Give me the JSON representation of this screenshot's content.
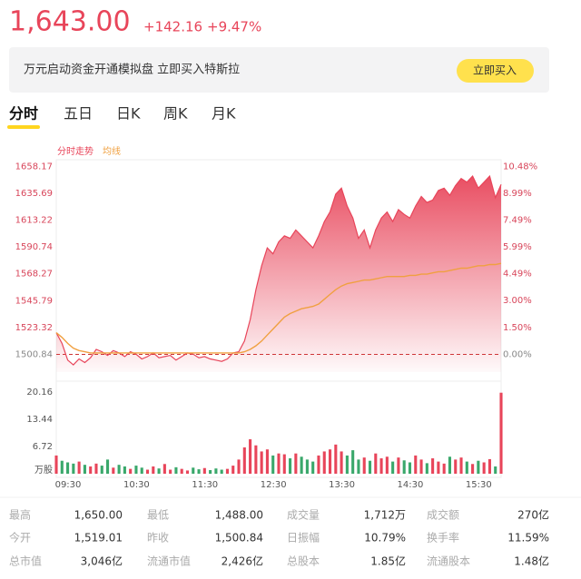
{
  "header": {
    "price": "1,643.00",
    "change": "+142.16",
    "change_pct": "+9.47%"
  },
  "banner": {
    "text": "万元启动资金开通模拟盘  立即买入特斯拉",
    "button": "立即买入"
  },
  "tabs": [
    "分时",
    "五日",
    "日K",
    "周K",
    "月K"
  ],
  "chart_data": [
    {
      "type": "line",
      "area": true,
      "x": [
        0,
        5,
        10,
        15,
        20,
        25,
        30,
        35,
        40,
        45,
        50,
        55,
        60,
        65,
        70,
        75,
        80,
        85,
        90,
        95,
        100,
        105,
        110,
        115,
        120,
        125,
        130,
        135,
        140,
        145,
        150,
        155,
        160,
        165,
        170,
        175,
        180,
        185,
        190,
        195,
        200,
        205,
        210,
        215,
        220,
        225,
        230,
        235,
        240,
        245,
        250,
        255,
        260,
        265,
        270,
        275,
        280,
        285,
        290,
        295,
        300,
        305,
        310,
        315,
        320,
        325,
        330,
        335,
        340,
        345,
        350,
        355,
        360,
        365,
        370,
        375,
        380,
        385,
        390
      ],
      "xlim": [
        0,
        390
      ],
      "xticks": [
        {
          "value": 0,
          "label": "09:30"
        },
        {
          "value": 60,
          "label": "10:30"
        },
        {
          "value": 120,
          "label": "11:30"
        },
        {
          "value": 180,
          "label": "12:30"
        },
        {
          "value": 240,
          "label": "13:30"
        },
        {
          "value": 300,
          "label": "14:30"
        },
        {
          "value": 360,
          "label": "15:30"
        }
      ],
      "ylim": [
        1486,
        1663
      ],
      "yticks": [
        1500.84,
        1523.32,
        1545.79,
        1568.27,
        1590.74,
        1613.22,
        1635.69,
        1658.17
      ],
      "y2lim": [
        -0.99,
        10.8
      ],
      "y2ticks": [
        {
          "value": 0,
          "label": "0.00%"
        },
        {
          "value": 1.5,
          "label": "1.50%"
        },
        {
          "value": 3,
          "label": "3.00%"
        },
        {
          "value": 4.49,
          "label": "4.49%"
        },
        {
          "value": 5.99,
          "label": "5.99%"
        },
        {
          "value": 7.49,
          "label": "7.49%"
        },
        {
          "value": 8.99,
          "label": "8.99%"
        },
        {
          "value": 10.48,
          "label": "10.48%"
        }
      ],
      "baseline": 1500.84,
      "series": [
        {
          "name": "分时走势",
          "color": "#e8455a",
          "values": [
            1519,
            1510,
            1496,
            1492,
            1497,
            1494,
            1498,
            1505,
            1503,
            1500,
            1504,
            1502,
            1499,
            1503,
            1501,
            1497,
            1499,
            1502,
            1498,
            1499,
            1500,
            1496,
            1499,
            1502,
            1501,
            1498,
            1499,
            1497,
            1496,
            1495,
            1497,
            1502,
            1503,
            1512,
            1530,
            1555,
            1575,
            1590,
            1585,
            1595,
            1600,
            1598,
            1605,
            1600,
            1595,
            1590,
            1600,
            1612,
            1620,
            1635,
            1640,
            1625,
            1615,
            1598,
            1605,
            1590,
            1605,
            1615,
            1620,
            1612,
            1622,
            1618,
            1615,
            1625,
            1633,
            1628,
            1630,
            1638,
            1640,
            1634,
            1642,
            1648,
            1645,
            1650,
            1640,
            1645,
            1650,
            1632,
            1643
          ]
        },
        {
          "name": "均线",
          "color": "#f0a040",
          "values": [
            1519,
            1515,
            1510,
            1506,
            1504,
            1503,
            1502,
            1502,
            1502,
            1502,
            1502,
            1502,
            1502,
            1502,
            1502,
            1502,
            1502,
            1502,
            1502,
            1502,
            1502,
            1502,
            1502,
            1502,
            1502,
            1502,
            1502,
            1502,
            1502,
            1502,
            1502,
            1502,
            1502,
            1503,
            1505,
            1508,
            1512,
            1517,
            1522,
            1527,
            1532,
            1535,
            1537,
            1539,
            1540,
            1541,
            1543,
            1547,
            1551,
            1555,
            1558,
            1560,
            1561,
            1562,
            1563,
            1563,
            1564,
            1565,
            1566,
            1566,
            1566,
            1566,
            1567,
            1567,
            1568,
            1568,
            1569,
            1570,
            1570,
            1571,
            1572,
            1573,
            1573,
            1574,
            1575,
            1575,
            1576,
            1576,
            1577
          ]
        }
      ]
    },
    {
      "type": "bar",
      "up_color": "#e8455a",
      "down_color": "#3aa86b",
      "x": [
        0,
        5,
        10,
        15,
        20,
        25,
        30,
        35,
        40,
        45,
        50,
        55,
        60,
        65,
        70,
        75,
        80,
        85,
        90,
        95,
        100,
        105,
        110,
        115,
        120,
        125,
        130,
        135,
        140,
        145,
        150,
        155,
        160,
        165,
        170,
        175,
        180,
        185,
        190,
        195,
        200,
        205,
        210,
        215,
        220,
        225,
        230,
        235,
        240,
        245,
        250,
        255,
        260,
        265,
        270,
        275,
        280,
        285,
        290,
        295,
        300,
        305,
        310,
        315,
        320,
        325,
        330,
        335,
        340,
        345,
        350,
        355,
        360,
        365,
        370,
        375,
        380,
        385,
        390
      ],
      "xlim": [
        0,
        390
      ],
      "ylim": [
        0,
        20.16
      ],
      "yticks": [
        {
          "value": 0,
          "label": "万股"
        },
        6.72,
        13.44,
        20.16
      ],
      "values": [
        4.5,
        3.2,
        2.8,
        2.5,
        3.0,
        2.2,
        1.8,
        2.5,
        2.0,
        3.5,
        1.5,
        2.2,
        1.8,
        1.2,
        2.0,
        1.5,
        1.0,
        1.8,
        1.3,
        2.4,
        1.0,
        1.6,
        1.2,
        0.8,
        1.5,
        1.1,
        1.4,
        0.9,
        1.3,
        1.0,
        1.2,
        2.0,
        3.5,
        6.5,
        8.5,
        7.0,
        5.5,
        6.0,
        4.5,
        5.0,
        4.8,
        3.8,
        5.0,
        4.2,
        3.5,
        3.0,
        4.5,
        5.5,
        6.0,
        7.2,
        5.5,
        4.5,
        5.8,
        3.5,
        4.0,
        3.2,
        5.0,
        3.8,
        4.2,
        3.0,
        4.0,
        3.3,
        2.8,
        4.5,
        3.5,
        2.6,
        3.8,
        3.0,
        2.5,
        4.2,
        3.5,
        4.0,
        3.0,
        2.4,
        3.2,
        2.8,
        3.6,
        1.8,
        20.0
      ]
    }
  ],
  "stats": [
    [
      [
        "最高",
        "1,650.00"
      ],
      [
        "最低",
        "1,488.00"
      ],
      [
        "成交量",
        "1,712万"
      ],
      [
        "成交额",
        "270亿"
      ]
    ],
    [
      [
        "今开",
        "1,519.01"
      ],
      [
        "昨收",
        "1,500.84"
      ],
      [
        "日振幅",
        "10.79%"
      ],
      [
        "换手率",
        "11.59%"
      ]
    ],
    [
      [
        "总市值",
        "3,046亿"
      ],
      [
        "流通市值",
        "2,426亿"
      ],
      [
        "总股本",
        "1.85亿"
      ],
      [
        "流通股本",
        "1.48亿"
      ]
    ]
  ]
}
